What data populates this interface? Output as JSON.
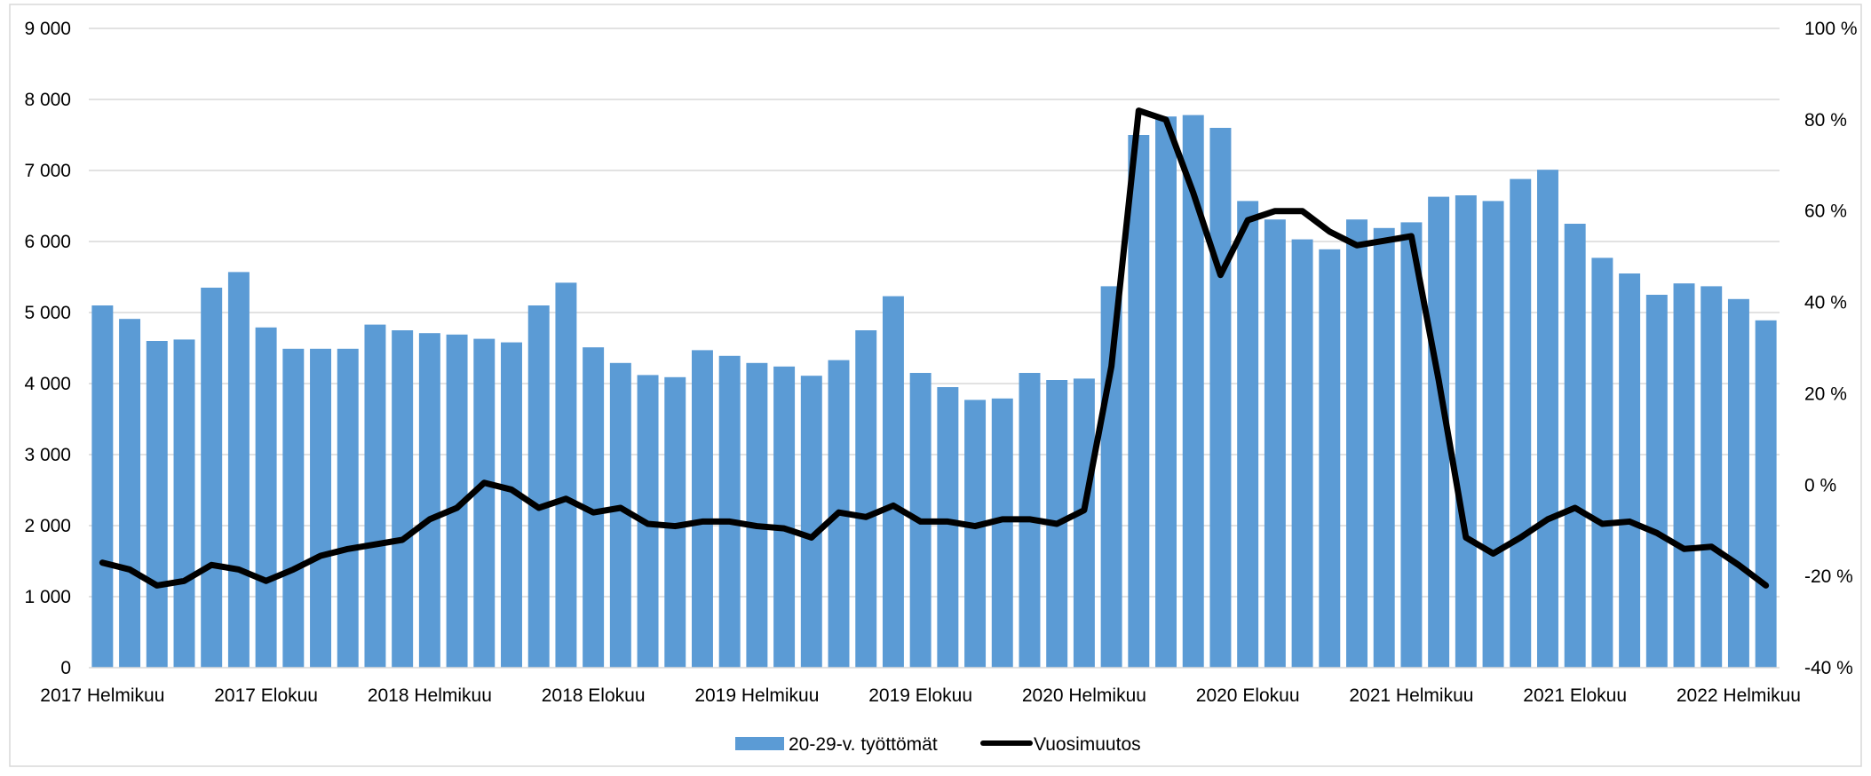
{
  "chart_data": {
    "type": "bar",
    "title": "",
    "xlabel": "",
    "ylabel": "",
    "colors": {
      "bars": "#5b9bd5",
      "line": "#000000",
      "grid": "#d9d9d9",
      "border": "#d9d9d9"
    },
    "x_tick_labels": [
      "2017 Helmikuu",
      "2017 Elokuu",
      "2018 Helmikuu",
      "2018 Elokuu",
      "2019 Helmikuu",
      "2019 Elokuu",
      "2020 Helmikuu",
      "2020 Elokuu",
      "2021 Helmikuu",
      "2021 Elokuu",
      "2022 Helmikuu"
    ],
    "x_tick_every": 6,
    "y_left": {
      "min": 0,
      "max": 9000,
      "step": 1000,
      "ticks": [
        "0",
        "1 000",
        "2 000",
        "3 000",
        "4 000",
        "5 000",
        "6 000",
        "7 000",
        "8 000",
        "9 000"
      ]
    },
    "y_right": {
      "min": -40,
      "max": 100,
      "step": 20,
      "ticks": [
        "-40 %",
        "-20 %",
        "0 %",
        "20 %",
        "40 %",
        "60 %",
        "80 %",
        "100 %"
      ]
    },
    "legend_position": "bottom",
    "series": [
      {
        "name": "20-29-v. työttömät",
        "type": "bar",
        "axis": "left",
        "values": [
          5100,
          4910,
          4600,
          4620,
          5350,
          5570,
          4790,
          4490,
          4490,
          4490,
          4830,
          4750,
          4710,
          4690,
          4630,
          4580,
          5100,
          5420,
          4510,
          4290,
          4120,
          4090,
          4470,
          4390,
          4290,
          4240,
          4110,
          4330,
          4750,
          5230,
          4150,
          3950,
          3770,
          3790,
          4150,
          4050,
          4070,
          5370,
          7500,
          7760,
          7780,
          7600,
          6570,
          6310,
          6030,
          5890,
          6310,
          6190,
          6270,
          6630,
          6650,
          6570,
          6880,
          7010,
          6250,
          5770,
          5550,
          5250,
          5410,
          5370,
          5190,
          4890
        ]
      },
      {
        "name": "Vuosimuutos",
        "type": "line",
        "axis": "right",
        "values": [
          -17,
          -18.5,
          -22,
          -21,
          -17.5,
          -18.5,
          -21,
          -18.5,
          -15.5,
          -14,
          -13,
          -12,
          -7.5,
          -5,
          0.5,
          -1,
          -5,
          -3,
          -6,
          -5,
          -8.5,
          -9,
          -8,
          -8,
          -9,
          -9.5,
          -11.5,
          -6,
          -7,
          -4.5,
          -8,
          -8,
          -9,
          -7.5,
          -7.5,
          -8.5,
          -5.5,
          26,
          82,
          80,
          64,
          46,
          58,
          60,
          60,
          55.5,
          52.5,
          53.5,
          54.5,
          23,
          -11.5,
          -15,
          -11.5,
          -7.5,
          -5,
          -8.5,
          -8,
          -10.5,
          -14,
          -13.5,
          -17.5,
          -22
        ]
      }
    ]
  }
}
